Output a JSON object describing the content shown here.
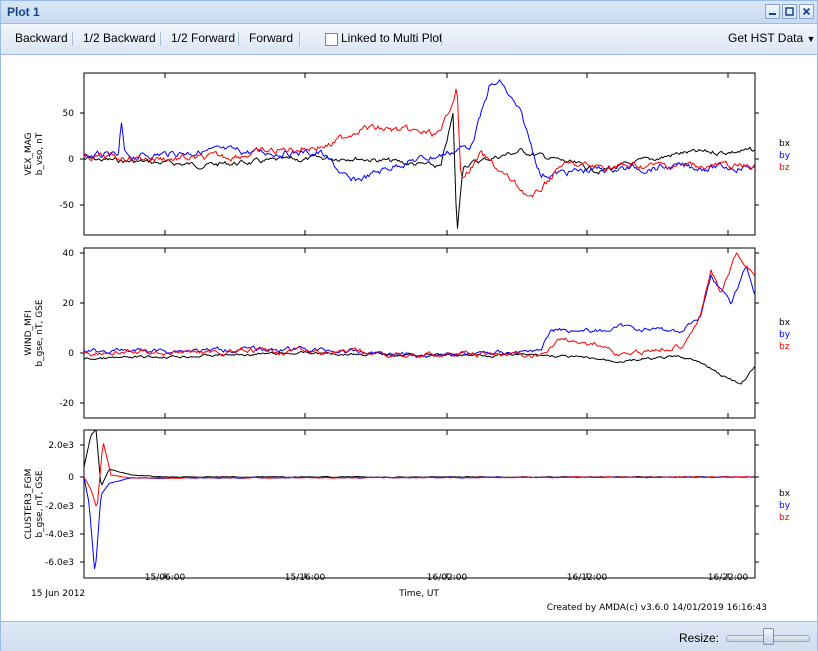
{
  "window": {
    "title": "Plot 1"
  },
  "toolbar": {
    "backward": "Backward",
    "half_backward": "1/2 Backward",
    "half_forward": "1/2 Forward",
    "forward": "Forward",
    "linked_label": "Linked to Multi Plot",
    "linked_checked": false,
    "get_hst": "Get HST Data"
  },
  "plot": {
    "date": "15 Jun 2012",
    "xlabel": "Time, UT",
    "x_ticks": [
      "15/06:00",
      "15/16:00",
      "16/02:00",
      "16/12:00",
      "16/22:00"
    ],
    "created_by": "Created by AMDA(c) v3.6.0 14/01/2019 16:16:43",
    "legend": [
      "bx",
      "by",
      "bz"
    ],
    "colors": {
      "bx": "#000000",
      "by": "#0000ff",
      "bz": "#ff0000"
    },
    "panels": [
      {
        "ylabel1": "VEX_MAG",
        "ylabel2": "b_vso, nT",
        "yticks": [
          "50",
          "0",
          "-50"
        ]
      },
      {
        "ylabel1": "WIND_MFI",
        "ylabel2": "b_gse, nT, GSE",
        "yticks": [
          "40",
          "20",
          "0",
          "-20"
        ]
      },
      {
        "ylabel1": "CLUSTER3_FGM",
        "ylabel2": "b_gse, nT, GSE",
        "yticks": [
          "2.0e3",
          "0",
          "-2.0e3",
          "-4.0e3",
          "-6.0e3"
        ]
      }
    ]
  },
  "footer": {
    "resize_label": "Resize:",
    "resize_level": 0.45
  }
}
